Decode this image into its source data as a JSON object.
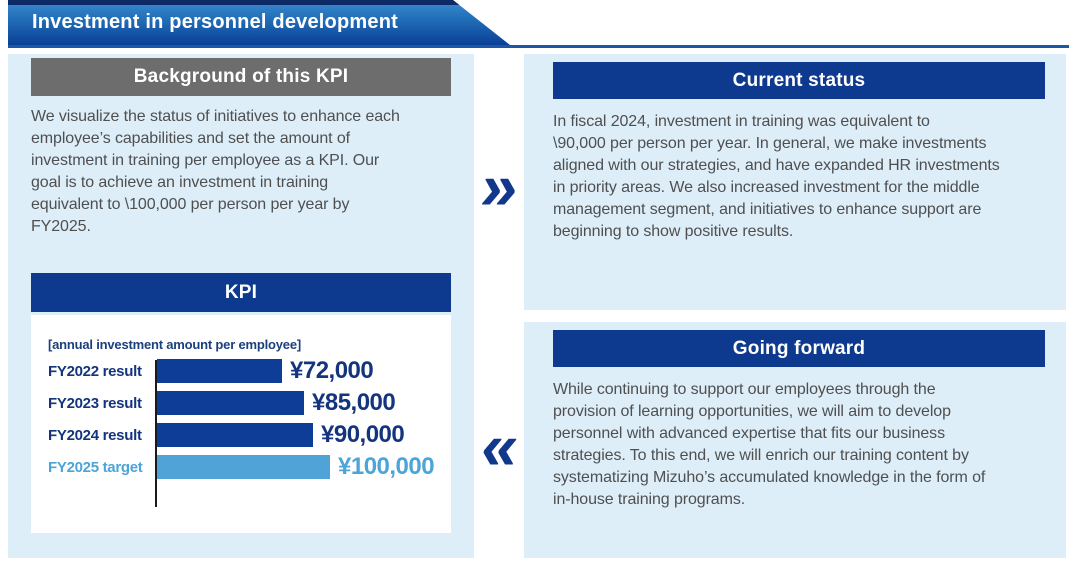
{
  "banner": {
    "title": "Investment in personnel development"
  },
  "colors": {
    "banner_gradient_top": "#3b8ace",
    "banner_gradient_bottom": "#0a3f95",
    "banner_topline": "#0d2a66",
    "rule_blue": "#1a57a9",
    "panel_light_blue": "#ddeef9",
    "header_navy": "#0d3a8f",
    "header_gray": "#6e6d6d",
    "bar_navy": "#0e3d97",
    "bar_light_blue": "#4fa3d6",
    "text_navy": "#14357d",
    "text_light_blue": "#4ba5d8",
    "body_text_gray": "#4f4f4f",
    "chevron_navy": "#12388c"
  },
  "background_panel": {
    "header": "Background of this KPI",
    "body": "We visualize the status of initiatives to enhance each\nemployee’s capabilities and set the amount of\ninvestment in training per employee as a KPI. Our\ngoal is to achieve an investment in training\nequivalent to \\100,000 per person per year by\nFY2025."
  },
  "chart_data": {
    "type": "bar",
    "title": "KPI",
    "note": "[annual investment amount per employee]",
    "orientation": "horizontal",
    "categories": [
      "FY2022 result",
      "FY2023 result",
      "FY2024 result",
      "FY2025 target"
    ],
    "values": [
      72000,
      85000,
      90000,
      100000
    ],
    "value_labels": [
      "¥72,000",
      "¥85,000",
      "¥90,000",
      "¥100,000"
    ],
    "highlight_index": 3,
    "xlim": [
      0,
      100000
    ],
    "grid": "off",
    "legend": "none"
  },
  "current_status": {
    "header": "Current status",
    "body": "In fiscal 2024, investment in training was equivalent to\n\\90,000 per person per year. In general, we make investments\naligned with our strategies, and have expanded HR investments\nin priority areas. We also increased investment for the middle\nmanagement segment, and initiatives to enhance support are\nbeginning to show positive results."
  },
  "going_forward": {
    "header": "Going forward",
    "body": "While continuing to support our employees through the\nprovision of learning opportunities, we will aim to develop\npersonnel with advanced expertise that fits our business\nstrategies. To this end, we will enrich our training content by\nsystematizing Mizuho’s accumulated knowledge in the form of\nin-house training programs."
  },
  "arrows": {
    "right": "»",
    "left": "«"
  }
}
